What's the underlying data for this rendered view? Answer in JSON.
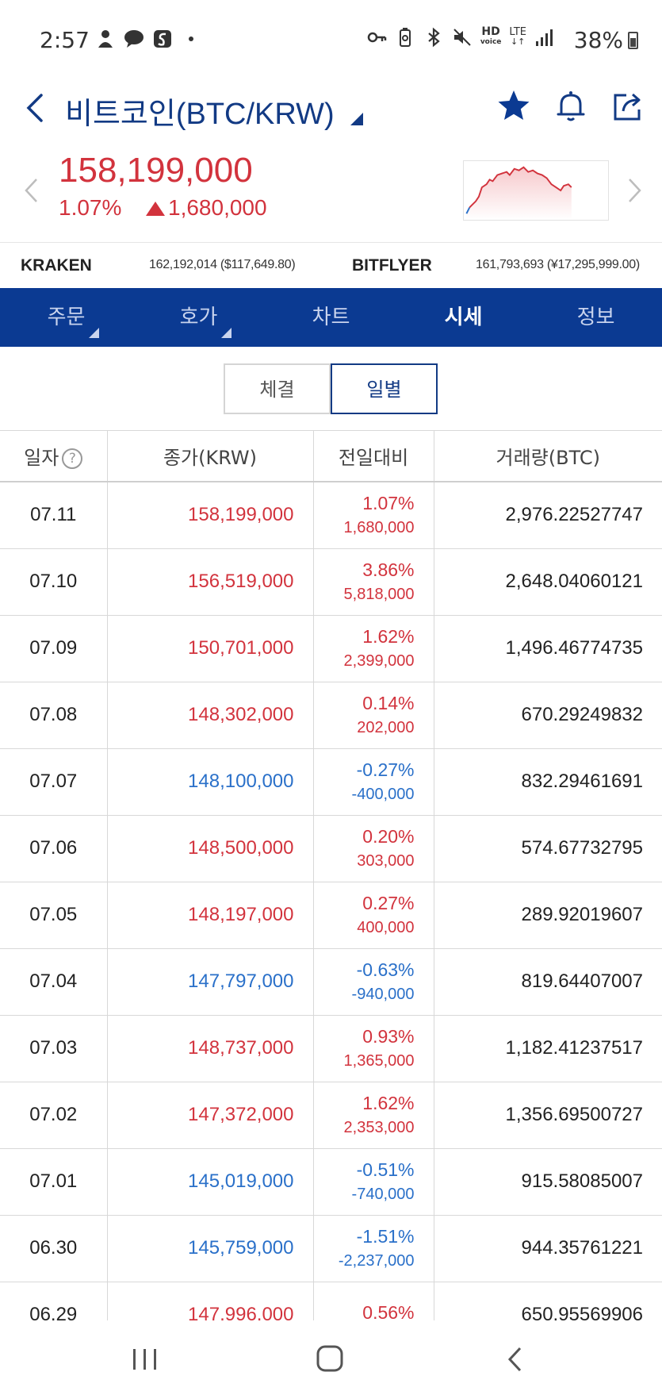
{
  "status_bar": {
    "time": "2:57",
    "battery": "38%",
    "left_icons": [
      "person-icon",
      "talk-icon",
      "s-app-icon",
      "dot-icon"
    ],
    "right_icons": [
      "key-icon",
      "battery-saver-icon",
      "bluetooth-icon",
      "mute-icon",
      "hd-voice-icon",
      "lte-icon",
      "signal-icon"
    ],
    "hd_label": "HD",
    "voice_label": "voice",
    "lte_label": "LTE"
  },
  "header": {
    "title": "비트코인(BTC/KRW)",
    "icons": [
      "back-icon",
      "star-icon",
      "bell-icon",
      "share-icon"
    ]
  },
  "price": {
    "current": "158,199,000",
    "change_pct": "1.07%",
    "change_amount": "1,680,000",
    "color_up": "#d2333d",
    "color_down": "#2a70c9"
  },
  "exchanges": [
    {
      "name": "KRAKEN",
      "value": "162,192,014 ($117,649.80)"
    },
    {
      "name": "BITFLYER",
      "value": "161,793,693 (¥17,295,999.00)"
    }
  ],
  "tabs": [
    {
      "label": "주문",
      "has_caret": true,
      "active": false
    },
    {
      "label": "호가",
      "has_caret": true,
      "active": false
    },
    {
      "label": "차트",
      "has_caret": false,
      "active": false
    },
    {
      "label": "시세",
      "has_caret": false,
      "active": true
    },
    {
      "label": "정보",
      "has_caret": false,
      "active": false
    }
  ],
  "segment": {
    "options": [
      "체결",
      "일별"
    ],
    "selected": "일별"
  },
  "table": {
    "headers": [
      "일자",
      "종가(KRW)",
      "전일대비",
      "거래량(BTC)"
    ],
    "help_symbol": "?",
    "rows": [
      {
        "date": "07.11",
        "close": "158,199,000",
        "pct": "1.07%",
        "amount": "1,680,000",
        "volume": "2,976.22527747",
        "dir": "up"
      },
      {
        "date": "07.10",
        "close": "156,519,000",
        "pct": "3.86%",
        "amount": "5,818,000",
        "volume": "2,648.04060121",
        "dir": "up"
      },
      {
        "date": "07.09",
        "close": "150,701,000",
        "pct": "1.62%",
        "amount": "2,399,000",
        "volume": "1,496.46774735",
        "dir": "up"
      },
      {
        "date": "07.08",
        "close": "148,302,000",
        "pct": "0.14%",
        "amount": "202,000",
        "volume": "670.29249832",
        "dir": "up"
      },
      {
        "date": "07.07",
        "close": "148,100,000",
        "pct": "-0.27%",
        "amount": "-400,000",
        "volume": "832.29461691",
        "dir": "down"
      },
      {
        "date": "07.06",
        "close": "148,500,000",
        "pct": "0.20%",
        "amount": "303,000",
        "volume": "574.67732795",
        "dir": "up"
      },
      {
        "date": "07.05",
        "close": "148,197,000",
        "pct": "0.27%",
        "amount": "400,000",
        "volume": "289.92019607",
        "dir": "up"
      },
      {
        "date": "07.04",
        "close": "147,797,000",
        "pct": "-0.63%",
        "amount": "-940,000",
        "volume": "819.64407007",
        "dir": "down"
      },
      {
        "date": "07.03",
        "close": "148,737,000",
        "pct": "0.93%",
        "amount": "1,365,000",
        "volume": "1,182.41237517",
        "dir": "up"
      },
      {
        "date": "07.02",
        "close": "147,372,000",
        "pct": "1.62%",
        "amount": "2,353,000",
        "volume": "1,356.69500727",
        "dir": "up"
      },
      {
        "date": "07.01",
        "close": "145,019,000",
        "pct": "-0.51%",
        "amount": "-740,000",
        "volume": "915.58085007",
        "dir": "down"
      },
      {
        "date": "06.30",
        "close": "145,759,000",
        "pct": "-1.51%",
        "amount": "-2,237,000",
        "volume": "944.35761221",
        "dir": "down"
      },
      {
        "date": "06.29",
        "close": "147,996,000",
        "pct": "0.56%",
        "amount": "",
        "volume": "650.95569906",
        "dir": "up"
      }
    ]
  },
  "nav_bar": {
    "icons": [
      "recent-apps-icon",
      "home-icon",
      "back-icon"
    ]
  }
}
